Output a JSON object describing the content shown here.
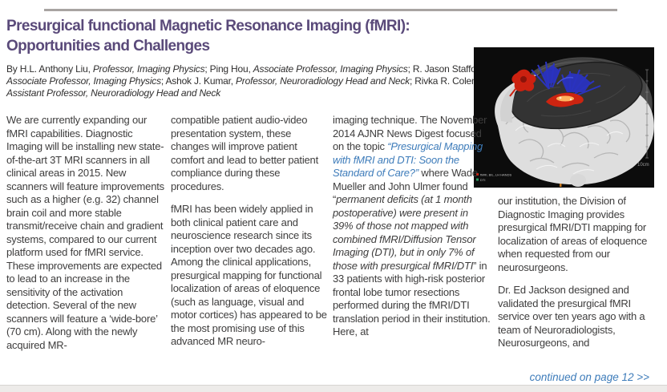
{
  "header": {
    "title_line1": "Presurgical functional Magnetic Resonance Imaging (fMRI):",
    "title_line2": "Opportunities and Challenges",
    "title_color": "#5a4a7a"
  },
  "byline": {
    "segments": [
      {
        "t": "By H.L. Anthony Liu, ",
        "s": "n"
      },
      {
        "t": "Professor, Imaging Physics",
        "s": "i"
      },
      {
        "t": "; Ping Hou, ",
        "s": "n"
      },
      {
        "t": "Associate Professor, Imaging Physics",
        "s": "i"
      },
      {
        "t": "; R. Jason Stafford, ",
        "s": "n"
      },
      {
        "t": "Associate Professor, Imaging Physics",
        "s": "i"
      },
      {
        "t": "; Ashok J. Kumar, ",
        "s": "n"
      },
      {
        "t": "Professor, Neuroradiology Head and Neck",
        "s": "i"
      },
      {
        "t": "; Rivka R. Colen, ",
        "s": "n"
      },
      {
        "t": "Assistant Professor, Neuroradiology Head and Neck",
        "s": "i"
      }
    ]
  },
  "columns": [
    {
      "paragraphs": [
        {
          "segments": [
            {
              "t": "We are currently expanding our fMRI capabilities.  Diagnostic Imaging will be installing new state-of-the-art 3T MRI scanners in all clinical areas in 2015.  New scanners will feature improvements such as a higher (e.g. 32) channel brain coil and more stable transmit/receive chain and gradient systems, compared to our current platform used for fMRI service.  These improvements are expected to lead to an increase in the sensitivity of the activation detection.  Several of the new scanners will feature a ‘wide-bore’ (70 cm). Along with the newly acquired MR-",
              "s": "n"
            }
          ]
        }
      ]
    },
    {
      "paragraphs": [
        {
          "segments": [
            {
              "t": "compatible patient audio-video presentation system, these changes will improve patient comfort and lead to better patient compliance during these procedures.",
              "s": "n"
            }
          ]
        },
        {
          "segments": [
            {
              "t": "fMRI has been widely applied in both clinical patient care and neuroscience research since its inception over two decades ago.  Among the clinical applications, presurgical mapping for functional localization of areas of eloquence (such as language, visual and motor cortices) has appeared to be the most promising use of this advanced MR neuro-",
              "s": "n"
            }
          ]
        }
      ]
    },
    {
      "paragraphs": [
        {
          "segments": [
            {
              "t": "imaging technique.  The November 2014 AJNR News Digest focused on the topic ",
              "s": "n"
            },
            {
              "t": "“Presurgical Mapping with fMRI and DTI: Soon the Standard of Care?”",
              "s": "bi",
              "link": true
            },
            {
              "t": " where Wade Mueller and John Ulmer found “",
              "s": "n"
            },
            {
              "t": "permanent deficits (at 1 month postoperative) were present in 39% of those not mapped with combined fMRI/Diffusion Tensor Imaging (DTI), but in only 7% of those with presurgical fMRI/DTI",
              "s": "i"
            },
            {
              "t": "” in 33 patients with high-risk posterior frontal lobe tumor resections performed during the fMRI/DTI translation period in their institution.  Here, at",
              "s": "n"
            }
          ]
        }
      ]
    },
    {
      "paragraphs": [
        {
          "segments": [
            {
              "t": "our institution, the Division of Diagnostic Imaging provides presurgical fMRI/DTI mapping for localization of areas of eloquence when requested from our neurosurgeons.",
              "s": "n"
            }
          ]
        },
        {
          "segments": [
            {
              "t": "Dr. Ed Jackson designed and validated the presurgical fMRI service over ten years ago with a team of Neuroradiologists, Neurosurgeons, and",
              "s": "n"
            }
          ]
        }
      ]
    }
  ],
  "figure": {
    "meta_line1": "fMRI, BIL, LH HANDS",
    "meta_line2": "DTI",
    "scale_label": "10cm",
    "colors": {
      "activation_red": "#cc2110",
      "tracts_blue": "#2a33c0",
      "background": "#0c0c0c"
    }
  },
  "footer": {
    "continued_label": "continued on page 12 >>",
    "link_color": "#3e7cba"
  }
}
